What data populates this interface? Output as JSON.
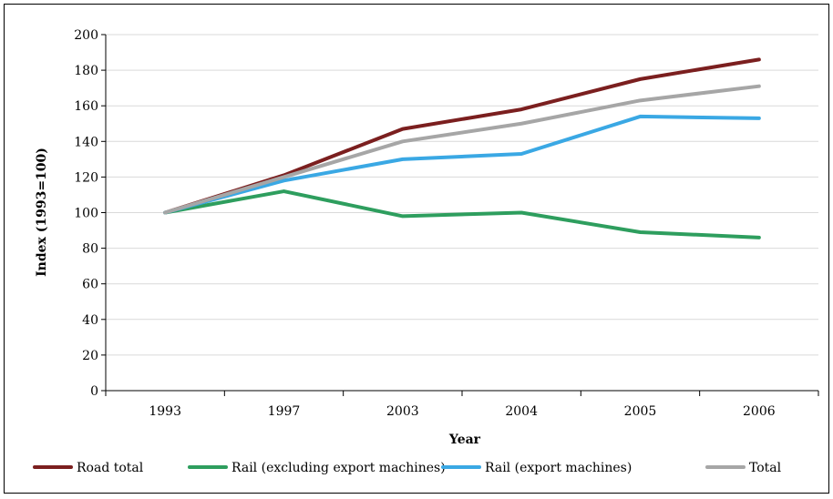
{
  "chart_data": {
    "type": "line",
    "title": "",
    "xlabel": "Year",
    "ylabel": "Index (1993=100)",
    "categories": [
      "1993",
      "1997",
      "2003",
      "2004",
      "2005",
      "2006"
    ],
    "ylim": [
      0,
      200
    ],
    "yticks": [
      0,
      20,
      40,
      60,
      80,
      100,
      120,
      140,
      160,
      180,
      200
    ],
    "grid": true,
    "legend": "bottom",
    "series": [
      {
        "name": "Road total",
        "color": "#7b1f1f",
        "values": [
          100,
          121,
          147,
          158,
          175,
          186
        ]
      },
      {
        "name": "Rail (excluding export machines)",
        "color": "#2e9e5e",
        "values": [
          100,
          112,
          98,
          100,
          89,
          86
        ]
      },
      {
        "name": "Rail (export machines)",
        "color": "#3aa8e4",
        "values": [
          100,
          118,
          130,
          133,
          154,
          153
        ]
      },
      {
        "name": "Total",
        "color": "#a6a6a6",
        "values": [
          100,
          120,
          140,
          150,
          163,
          171
        ]
      }
    ]
  }
}
